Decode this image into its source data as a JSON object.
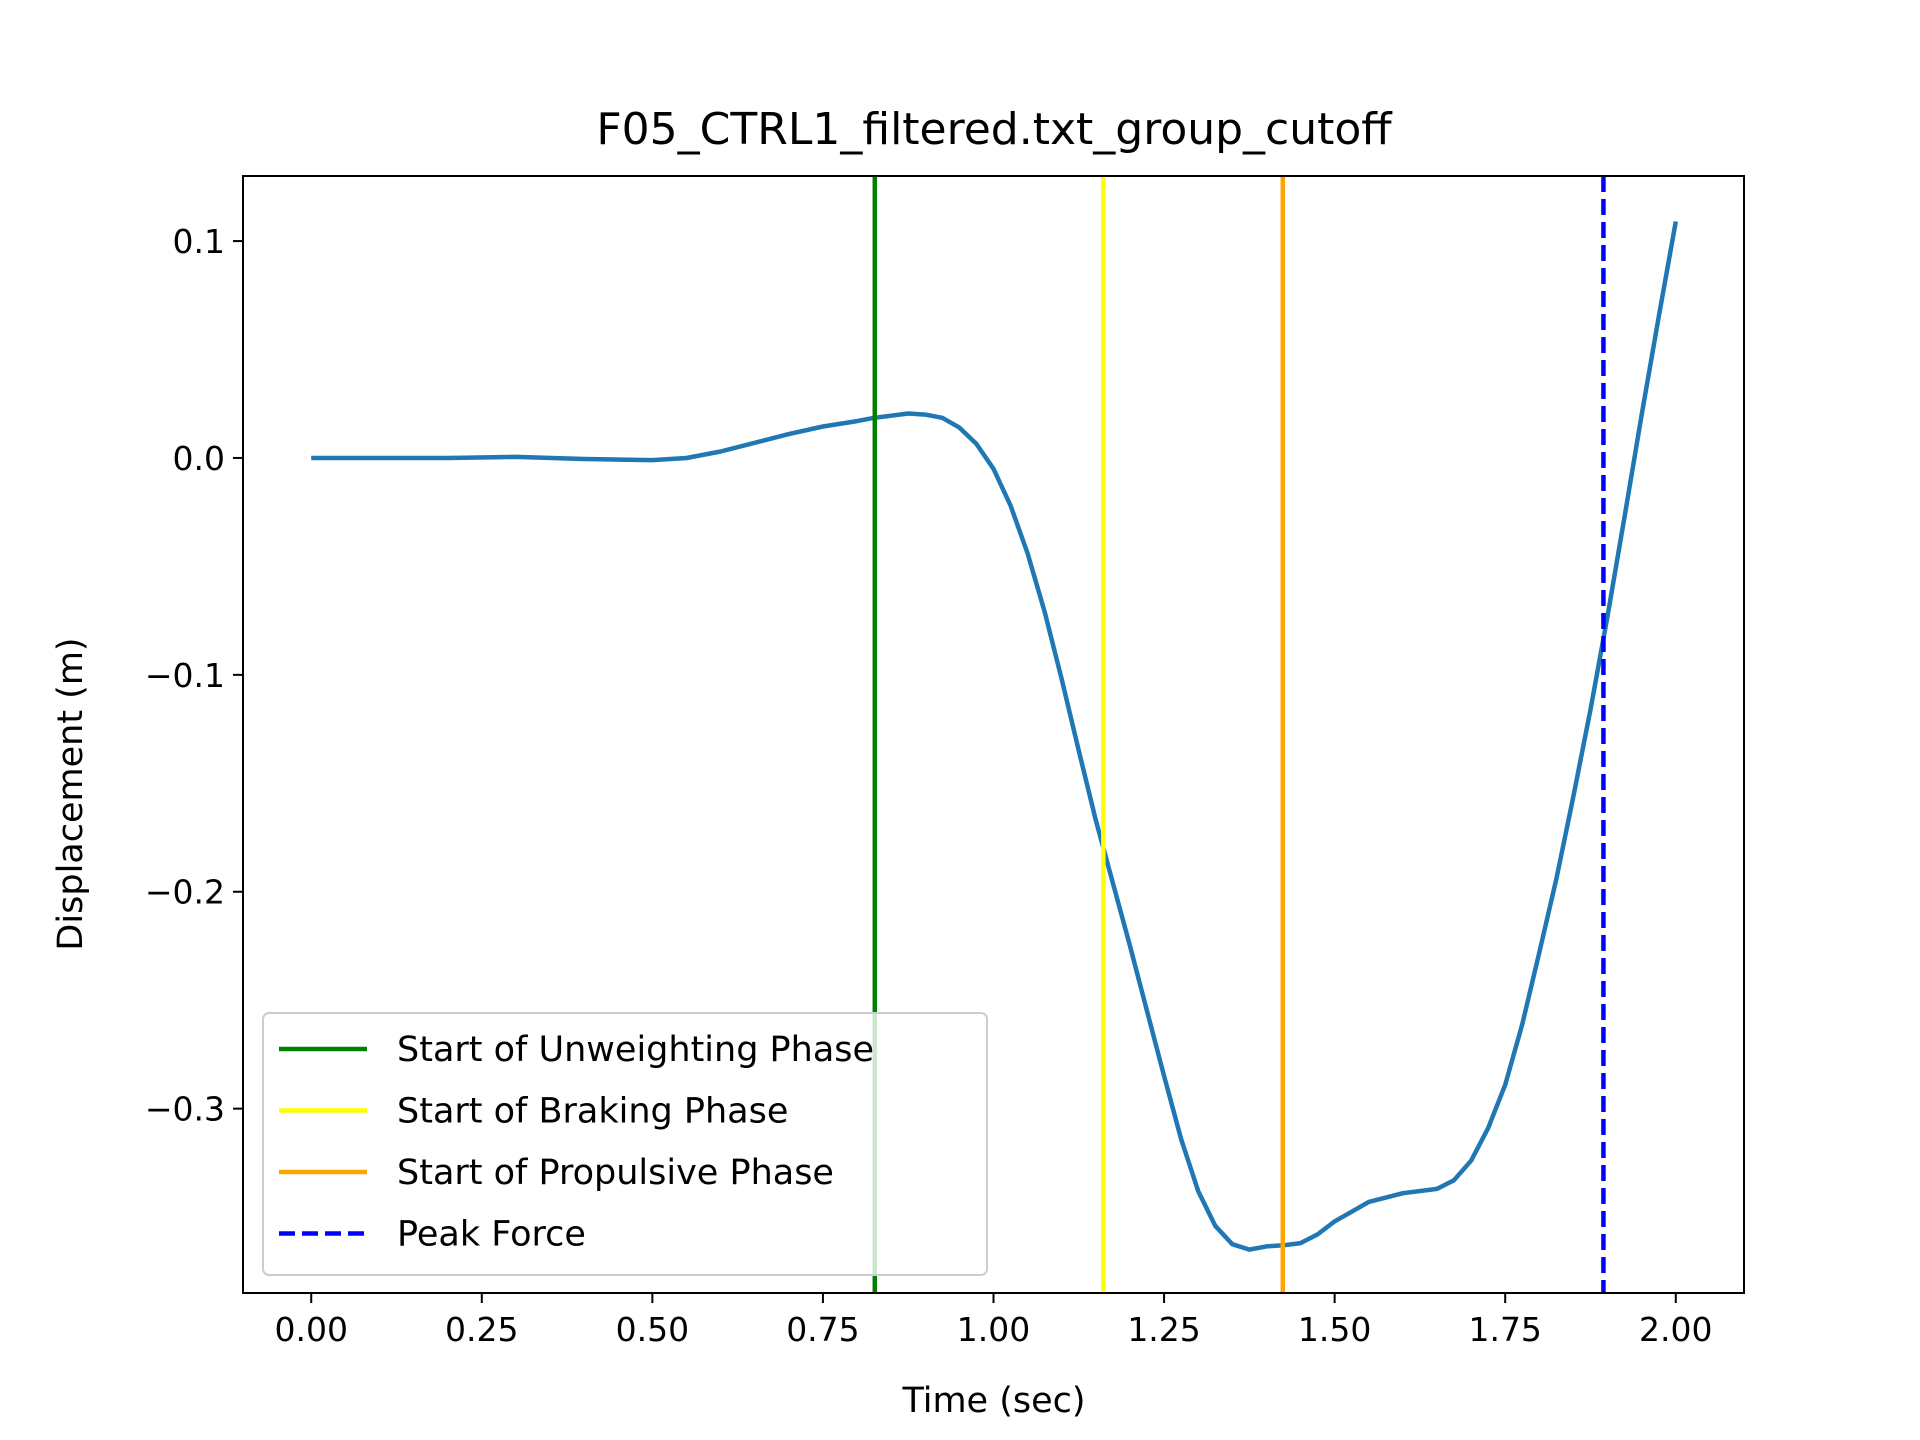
{
  "chart_data": {
    "type": "line",
    "title": "F05_CTRL1_filtered.txt_group_cutoff",
    "xlabel": "Time (sec)",
    "ylabel": "Displacement (m)",
    "xlim": [
      -0.1,
      2.1
    ],
    "ylim": [
      -0.385,
      0.13
    ],
    "grid": false,
    "legend_position": "lower-left",
    "x_ticks": [
      {
        "value": 0.0,
        "label": "0.00"
      },
      {
        "value": 0.25,
        "label": "0.25"
      },
      {
        "value": 0.5,
        "label": "0.50"
      },
      {
        "value": 0.75,
        "label": "0.75"
      },
      {
        "value": 1.0,
        "label": "1.00"
      },
      {
        "value": 1.25,
        "label": "1.25"
      },
      {
        "value": 1.5,
        "label": "1.50"
      },
      {
        "value": 1.75,
        "label": "1.75"
      },
      {
        "value": 2.0,
        "label": "2.00"
      }
    ],
    "y_ticks": [
      {
        "value": 0.1,
        "label": "0.1"
      },
      {
        "value": 0.0,
        "label": "0.0"
      },
      {
        "value": -0.1,
        "label": "−0.1"
      },
      {
        "value": -0.2,
        "label": "−0.2"
      },
      {
        "value": -0.3,
        "label": "−0.3"
      }
    ],
    "series": [
      {
        "color": "#1f77b4",
        "x": [
          0.0,
          0.1,
          0.2,
          0.3,
          0.4,
          0.5,
          0.55,
          0.6,
          0.65,
          0.7,
          0.75,
          0.8,
          0.825,
          0.85,
          0.875,
          0.9,
          0.925,
          0.95,
          0.975,
          1.0,
          1.025,
          1.05,
          1.075,
          1.1,
          1.125,
          1.15,
          1.175,
          1.2,
          1.225,
          1.25,
          1.275,
          1.3,
          1.325,
          1.35,
          1.375,
          1.4,
          1.425,
          1.45,
          1.475,
          1.5,
          1.55,
          1.6,
          1.65,
          1.675,
          1.7,
          1.725,
          1.75,
          1.775,
          1.8,
          1.825,
          1.85,
          1.875,
          1.9,
          1.925,
          1.95,
          1.975,
          2.0
        ],
        "y": [
          0.0,
          0.0,
          0.0,
          0.0005,
          -0.0005,
          -0.001,
          0.0,
          0.003,
          0.007,
          0.011,
          0.0145,
          0.017,
          0.0185,
          0.0195,
          0.0205,
          0.02,
          0.0185,
          0.014,
          0.0065,
          -0.005,
          -0.022,
          -0.044,
          -0.071,
          -0.102,
          -0.135,
          -0.167,
          -0.196,
          -0.225,
          -0.255,
          -0.285,
          -0.314,
          -0.338,
          -0.354,
          -0.3625,
          -0.365,
          -0.3635,
          -0.363,
          -0.362,
          -0.358,
          -0.352,
          -0.343,
          -0.339,
          -0.337,
          -0.333,
          -0.324,
          -0.309,
          -0.289,
          -0.261,
          -0.228,
          -0.194,
          -0.156,
          -0.116,
          -0.073,
          -0.027,
          0.02,
          0.065,
          0.109
        ]
      }
    ],
    "vlines": [
      {
        "x": 0.826,
        "color": "#008000",
        "style": "solid",
        "legend": "Start of Unweighting Phase"
      },
      {
        "x": 1.161,
        "color": "#ffff00",
        "style": "solid",
        "legend": "Start of Braking Phase"
      },
      {
        "x": 1.424,
        "color": "#ffa500",
        "style": "solid",
        "legend": "Start of Propulsive Phase"
      },
      {
        "x": 1.894,
        "color": "#0000ff",
        "style": "dashed",
        "legend": "Peak Force"
      }
    ]
  }
}
